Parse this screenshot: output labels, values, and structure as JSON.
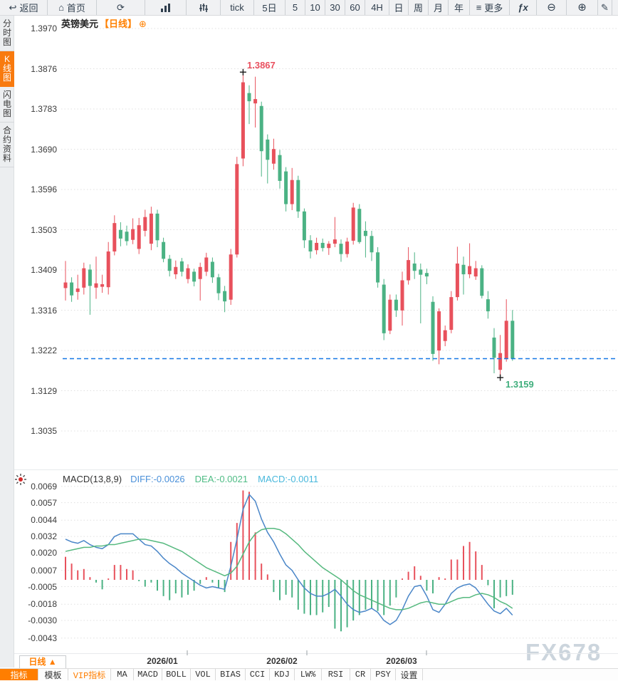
{
  "toolbar": {
    "items": [
      {
        "id": "back",
        "label": "返回",
        "glyph": "↩"
      },
      {
        "id": "home",
        "label": "首页",
        "glyph": "⌂"
      },
      {
        "id": "refresh",
        "label": "",
        "glyph": "⟳"
      },
      {
        "id": "colchart",
        "label": "",
        "glyph": "",
        "svg": "colchart"
      },
      {
        "id": "ohlc",
        "label": "",
        "glyph": "",
        "svg": "ohlc"
      },
      {
        "id": "tick",
        "label": "tick",
        "glyph": ""
      },
      {
        "id": "d5",
        "label": "5日",
        "glyph": ""
      },
      {
        "id": "m5",
        "label": "5",
        "glyph": ""
      },
      {
        "id": "m10",
        "label": "10",
        "glyph": ""
      },
      {
        "id": "m30",
        "label": "30",
        "glyph": ""
      },
      {
        "id": "m60",
        "label": "60",
        "glyph": ""
      },
      {
        "id": "h4",
        "label": "4H",
        "glyph": ""
      },
      {
        "id": "day",
        "label": "日",
        "glyph": ""
      },
      {
        "id": "week",
        "label": "周",
        "glyph": ""
      },
      {
        "id": "month",
        "label": "月",
        "glyph": ""
      },
      {
        "id": "year",
        "label": "年",
        "glyph": ""
      },
      {
        "id": "more",
        "label": "更多",
        "glyph": "≡"
      },
      {
        "id": "fx",
        "label": "",
        "glyph": "ƒx"
      },
      {
        "id": "zout",
        "label": "",
        "glyph": "⊖"
      },
      {
        "id": "zin",
        "label": "",
        "glyph": "⊕"
      },
      {
        "id": "draw",
        "label": "",
        "glyph": "✎"
      }
    ]
  },
  "sidebar": {
    "tabs": [
      {
        "id": "time-chart",
        "label": "分时图",
        "active": false
      },
      {
        "id": "kline-chart",
        "label": "K线图",
        "active": true
      },
      {
        "id": "lightning-chart",
        "label": "闪电图",
        "active": false
      },
      {
        "id": "contract-info",
        "label": "合约资料",
        "active": false
      }
    ]
  },
  "chart": {
    "title": "英镑美元",
    "period_tag": "【日线】",
    "add_glyph": "⊕",
    "high_label": "1.3867",
    "low_label": "1.3159",
    "price_axis": [
      "1.3970",
      "1.3876",
      "1.3783",
      "1.3690",
      "1.3596",
      "1.3503",
      "1.3409",
      "1.3316",
      "1.3222",
      "1.3129",
      "1.3035"
    ],
    "x_axis": [
      "2026/01",
      "2026/02",
      "2026/03"
    ]
  },
  "macd": {
    "title": "MACD(13,8,9)",
    "diff_label": "DIFF:-0.0026",
    "dea_label": "DEA:-0.0021",
    "macd_label": "MACD:-0.0011",
    "axis": [
      "0.0069",
      "0.0057",
      "0.0044",
      "0.0032",
      "0.0020",
      "0.0007",
      "-0.0005",
      "-0.0018",
      "-0.0030",
      "-0.0043"
    ]
  },
  "footer": {
    "period_button": "日线 ▲",
    "tabs": [
      {
        "label": "指标",
        "state": "active"
      },
      {
        "label": "模板",
        "state": "normal"
      },
      {
        "label": "VIP指标",
        "state": "vip"
      },
      {
        "label": "MA",
        "state": "normal"
      },
      {
        "label": "MACD",
        "state": "normal"
      },
      {
        "label": "BOLL",
        "state": "normal"
      },
      {
        "label": "VOL",
        "state": "normal"
      },
      {
        "label": "BIAS",
        "state": "normal"
      },
      {
        "label": "CCI",
        "state": "normal"
      },
      {
        "label": "KDJ",
        "state": "normal"
      },
      {
        "label": "LW%",
        "state": "normal"
      },
      {
        "label": "RSI",
        "state": "normal"
      },
      {
        "label": "CR",
        "state": "normal"
      },
      {
        "label": "PSY",
        "state": "normal"
      },
      {
        "label": "设置",
        "state": "normal"
      }
    ]
  },
  "watermark": "FX678",
  "colors": {
    "up": "#e8515c",
    "down": "#4bb284",
    "diff_line": "#4a86c8",
    "dea_line": "#56b97f",
    "dashed_line": "#1678e5",
    "grid": "#e0e0e0",
    "accent": "#ff7e00",
    "annotation_high": "#e94f5e",
    "annotation_low": "#3fae7c"
  },
  "chart_data": {
    "type": "candlestick",
    "symbol": "英镑美元",
    "period": "日线",
    "title": "英镑美元【日线】",
    "y_axis": [
      1.397,
      1.3876,
      1.3783,
      1.369,
      1.3596,
      1.3503,
      1.3409,
      1.3316,
      1.3222,
      1.3129,
      1.3035
    ],
    "x_labels": [
      "2026/01",
      "2026/02",
      "2026/03"
    ],
    "high_annotation": 1.3867,
    "low_annotation": 1.3159,
    "last_price": 1.3203,
    "grid": "dotted-horizontal",
    "candles": [
      [
        1.3367,
        1.343,
        1.3338,
        1.338
      ],
      [
        1.338,
        1.3392,
        1.3335,
        1.335
      ],
      [
        1.3358,
        1.3398,
        1.334,
        1.3366
      ],
      [
        1.3368,
        1.3426,
        1.3352,
        1.3413
      ],
      [
        1.341,
        1.3422,
        1.3305,
        1.3372
      ],
      [
        1.3368,
        1.344,
        1.3342,
        1.3378
      ],
      [
        1.337,
        1.3398,
        1.3356,
        1.3376
      ],
      [
        1.3369,
        1.3474,
        1.3352,
        1.3452
      ],
      [
        1.3452,
        1.3536,
        1.3443,
        1.3518
      ],
      [
        1.3502,
        1.352,
        1.3464,
        1.3482
      ],
      [
        1.3498,
        1.3512,
        1.3466,
        1.3476
      ],
      [
        1.3479,
        1.3529,
        1.3469,
        1.3504
      ],
      [
        1.3458,
        1.353,
        1.3446,
        1.3513
      ],
      [
        1.35,
        1.3549,
        1.3487,
        1.3532
      ],
      [
        1.347,
        1.3556,
        1.3455,
        1.354
      ],
      [
        1.354,
        1.3549,
        1.3462,
        1.3478
      ],
      [
        1.3474,
        1.3484,
        1.3427,
        1.3435
      ],
      [
        1.3435,
        1.3444,
        1.3394,
        1.3407
      ],
      [
        1.3399,
        1.3431,
        1.3388,
        1.3416
      ],
      [
        1.3429,
        1.3437,
        1.3394,
        1.3405
      ],
      [
        1.3388,
        1.3422,
        1.3378,
        1.3413
      ],
      [
        1.3405,
        1.3412,
        1.3371,
        1.3382
      ],
      [
        1.3388,
        1.3426,
        1.3338,
        1.3416
      ],
      [
        1.3405,
        1.3449,
        1.3395,
        1.3438
      ],
      [
        1.3428,
        1.3438,
        1.3379,
        1.3392
      ],
      [
        1.3392,
        1.34,
        1.3339,
        1.3355
      ],
      [
        1.336,
        1.3372,
        1.3311,
        1.3336
      ],
      [
        1.334,
        1.3458,
        1.3328,
        1.3445
      ],
      [
        1.3445,
        1.3672,
        1.3438,
        1.3655
      ],
      [
        1.3668,
        1.3867,
        1.365,
        1.3845
      ],
      [
        1.382,
        1.3838,
        1.3748,
        1.3801
      ],
      [
        1.3796,
        1.3858,
        1.374,
        1.3806
      ],
      [
        1.379,
        1.38,
        1.3626,
        1.3685
      ],
      [
        1.3712,
        1.3724,
        1.361,
        1.3665
      ],
      [
        1.3656,
        1.3714,
        1.3642,
        1.369
      ],
      [
        1.3676,
        1.3688,
        1.3598,
        1.3616
      ],
      [
        1.3638,
        1.3648,
        1.3545,
        1.3562
      ],
      [
        1.3562,
        1.3646,
        1.3548,
        1.3618
      ],
      [
        1.3618,
        1.3628,
        1.353,
        1.3545
      ],
      [
        1.3545,
        1.3552,
        1.346,
        1.3478
      ],
      [
        1.3478,
        1.349,
        1.3436,
        1.3452
      ],
      [
        1.3455,
        1.3484,
        1.3445,
        1.3472
      ],
      [
        1.3472,
        1.3482,
        1.3452,
        1.346
      ],
      [
        1.346,
        1.3476,
        1.3444,
        1.347
      ],
      [
        1.347,
        1.3532,
        1.3462,
        1.348
      ],
      [
        1.347,
        1.348,
        1.3428,
        1.3446
      ],
      [
        1.3446,
        1.3484,
        1.3438,
        1.3475
      ],
      [
        1.3477,
        1.3565,
        1.3468,
        1.3554
      ],
      [
        1.3551,
        1.3562,
        1.347,
        1.3474
      ],
      [
        1.35,
        1.3522,
        1.3438,
        1.3488
      ],
      [
        1.3488,
        1.35,
        1.343,
        1.345
      ],
      [
        1.345,
        1.3462,
        1.3368,
        1.338
      ],
      [
        1.3375,
        1.3388,
        1.3246,
        1.3262
      ],
      [
        1.3268,
        1.3352,
        1.326,
        1.334
      ],
      [
        1.334,
        1.3352,
        1.33,
        1.3315
      ],
      [
        1.3315,
        1.3405,
        1.328,
        1.3385
      ],
      [
        1.3385,
        1.3462,
        1.3375,
        1.3432
      ],
      [
        1.3424,
        1.345,
        1.3388,
        1.3407
      ],
      [
        1.341,
        1.3424,
        1.3285,
        1.3398
      ],
      [
        1.3402,
        1.3412,
        1.3376,
        1.3394
      ],
      [
        1.3335,
        1.3348,
        1.3198,
        1.3214
      ],
      [
        1.3222,
        1.332,
        1.319,
        1.3313
      ],
      [
        1.3244,
        1.328,
        1.3232,
        1.3269
      ],
      [
        1.327,
        1.336,
        1.3262,
        1.3346
      ],
      [
        1.3346,
        1.3463,
        1.3338,
        1.3424
      ],
      [
        1.3421,
        1.344,
        1.3352,
        1.3399
      ],
      [
        1.3399,
        1.3471,
        1.339,
        1.3418
      ],
      [
        1.3394,
        1.343,
        1.3386,
        1.3413
      ],
      [
        1.3413,
        1.342,
        1.3343,
        1.3349
      ],
      [
        1.3341,
        1.336,
        1.3296,
        1.3313
      ],
      [
        1.3252,
        1.3274,
        1.3169,
        1.3205
      ],
      [
        1.3177,
        1.3258,
        1.3159,
        1.3216
      ],
      [
        1.3202,
        1.3341,
        1.3196,
        1.3291
      ],
      [
        1.3291,
        1.3316,
        1.3198,
        1.3203
      ]
    ],
    "macd": {
      "params": "(13,8,9)",
      "y_axis": [
        0.0069,
        0.0057,
        0.0044,
        0.0032,
        0.002,
        0.0007,
        -0.0005,
        -0.0018,
        -0.003,
        -0.0043
      ],
      "diff": [
        0.003,
        0.0028,
        0.0027,
        0.0029,
        0.0026,
        0.0024,
        0.0023,
        0.0026,
        0.0032,
        0.0034,
        0.0034,
        0.0034,
        0.003,
        0.0026,
        0.0025,
        0.0021,
        0.0016,
        0.0012,
        0.0009,
        0.0005,
        0.0002,
        -0.0001,
        -0.0004,
        -0.0006,
        -0.0005,
        -0.0006,
        -0.0007,
        0.001,
        0.003,
        0.0052,
        0.0063,
        0.0058,
        0.0045,
        0.0035,
        0.0028,
        0.0019,
        0.0011,
        0.0007,
        0.0,
        -0.0006,
        -0.001,
        -0.0012,
        -0.0012,
        -0.001,
        -0.0007,
        -0.0012,
        -0.0018,
        -0.0022,
        -0.0024,
        -0.0023,
        -0.0021,
        -0.0024,
        -0.003,
        -0.0033,
        -0.003,
        -0.0022,
        -0.0012,
        -0.0005,
        -0.0004,
        -0.0012,
        -0.0022,
        -0.0024,
        -0.0018,
        -0.001,
        -0.0006,
        -0.0004,
        -0.0003,
        -0.0006,
        -0.0012,
        -0.0018,
        -0.0023,
        -0.0025,
        -0.0021,
        -0.0026
      ],
      "dea": [
        0.0021,
        0.0022,
        0.0023,
        0.0024,
        0.0024,
        0.0025,
        0.0025,
        0.0026,
        0.0026,
        0.0027,
        0.0028,
        0.0029,
        0.003,
        0.003,
        0.0029,
        0.0028,
        0.0027,
        0.0025,
        0.0023,
        0.0021,
        0.0018,
        0.0015,
        0.0012,
        0.0009,
        0.0007,
        0.0005,
        0.0003,
        0.0005,
        0.001,
        0.0019,
        0.0028,
        0.0034,
        0.0037,
        0.0038,
        0.0038,
        0.0037,
        0.0034,
        0.003,
        0.0026,
        0.0021,
        0.0017,
        0.0013,
        0.0009,
        0.0006,
        0.0003,
        0.0,
        -0.0004,
        -0.0008,
        -0.0011,
        -0.0013,
        -0.0015,
        -0.0017,
        -0.0019,
        -0.0021,
        -0.0022,
        -0.0022,
        -0.0021,
        -0.0019,
        -0.0017,
        -0.0016,
        -0.0017,
        -0.0018,
        -0.0018,
        -0.0016,
        -0.0014,
        -0.0013,
        -0.0013,
        -0.0011,
        -0.001,
        -0.0011,
        -0.0013,
        -0.0016,
        -0.0018,
        -0.0021
      ],
      "hist": [
        0.0017,
        0.0012,
        0.0007,
        0.0008,
        0.0002,
        -0.0002,
        -0.0007,
        0.0001,
        0.0011,
        0.0011,
        0.0008,
        0.0007,
        -0.0001,
        -0.0005,
        -0.0002,
        -0.0008,
        -0.0012,
        -0.0015,
        -0.001,
        -0.0013,
        -0.0011,
        -0.0008,
        -0.0003,
        0.0002,
        -0.0002,
        -0.0006,
        -0.0009,
        0.0028,
        0.0042,
        0.0066,
        0.0065,
        0.0035,
        0.0012,
        0.0004,
        -0.0009,
        -0.0015,
        -0.0011,
        -0.0013,
        -0.0022,
        -0.0025,
        -0.0026,
        -0.0026,
        -0.0024,
        -0.002,
        -0.0036,
        -0.0038,
        -0.0035,
        -0.003,
        -0.0026,
        -0.0022,
        -0.0021,
        -0.0023,
        -0.0026,
        -0.0019,
        -0.0013,
        0.0001,
        0.0006,
        0.001,
        0.0003,
        -0.0008,
        -0.001,
        0.0002,
        0.0001,
        0.0015,
        0.0015,
        0.0025,
        0.0028,
        0.0021,
        0.0011,
        -0.0004,
        -0.0021,
        -0.0013,
        -0.0012,
        -0.0011
      ]
    }
  }
}
